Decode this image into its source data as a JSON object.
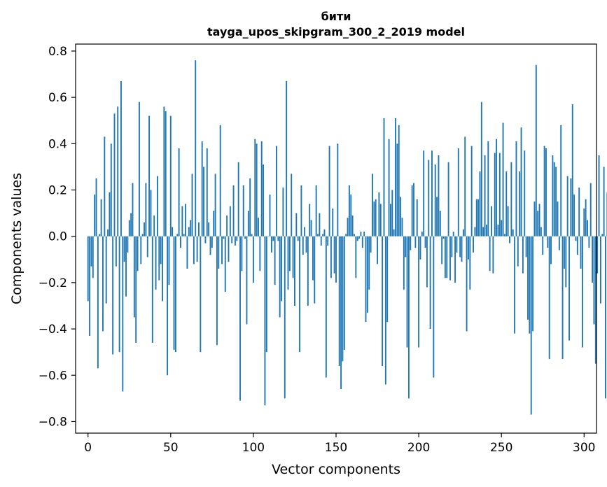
{
  "chart_data": {
    "type": "bar",
    "title": "бити",
    "subtitle": "tayga_upos_skipgram_300_2_2019 model",
    "xlabel": "Vector components",
    "ylabel": "Components values",
    "xlim": [
      -7.5,
      307.5
    ],
    "ylim": [
      -0.85,
      0.83
    ],
    "xticks": [
      0,
      50,
      100,
      150,
      200,
      250,
      300
    ],
    "yticks": [
      -0.8,
      -0.6,
      -0.4,
      -0.2,
      0.0,
      0.2,
      0.4,
      0.6,
      0.8
    ],
    "ytick_labels": [
      "−0.8",
      "−0.6",
      "−0.4",
      "−0.2",
      "0.0",
      "0.2",
      "0.4",
      "0.6",
      "0.8"
    ],
    "grid": false,
    "bar_color": "#1f77b4",
    "values": [
      -0.28,
      -0.43,
      -0.13,
      -0.18,
      0.18,
      0.25,
      -0.57,
      0.01,
      0.16,
      -0.41,
      0.43,
      -0.29,
      0.03,
      0.19,
      0.4,
      -0.51,
      0.53,
      -0.13,
      0.56,
      -0.5,
      0.67,
      -0.67,
      -0.11,
      -0.26,
      -0.07,
      0.07,
      0.1,
      0.23,
      -0.35,
      -0.46,
      -0.15,
      0.58,
      -0.12,
      0.01,
      0.06,
      0.23,
      -0.09,
      0.52,
      0.2,
      -0.46,
      0.09,
      -0.23,
      0.26,
      -0.19,
      -0.12,
      -0.28,
      0.56,
      0.54,
      -0.6,
      -0.21,
      0.52,
      0.04,
      -0.49,
      -0.5,
      0.01,
      0.38,
      -0.05,
      0.13,
      0.01,
      0.14,
      -0.14,
      0.04,
      0.07,
      0.27,
      -0.12,
      0.76,
      -0.11,
      0.06,
      -0.5,
      0.41,
      0.3,
      -0.03,
      0.38,
      0.06,
      -0.08,
      -0.05,
      0.11,
      0.27,
      -0.47,
      -0.14,
      0.48,
      -0.12,
      -0.01,
      -0.24,
      0.09,
      -0.11,
      0.13,
      -0.03,
      0.22,
      -0.04,
      -0.02,
      0.32,
      -0.71,
      -0.15,
      0.22,
      -0.01,
      -0.38,
      0.11,
      0.25,
      0.01,
      -0.2,
      0.42,
      0.4,
      0.08,
      -0.15,
      0.41,
      0.31,
      -0.73,
      -0.5,
      0.0,
      0.18,
      -0.07,
      -0.02,
      -0.21,
      0.39,
      -0.02,
      -0.35,
      -0.28,
      0.21,
      -0.7,
      0.67,
      -0.23,
      -0.15,
      0.27,
      -0.18,
      -0.3,
      0.1,
      -0.02,
      -0.5,
      0.22,
      -0.08,
      0.04,
      -0.07,
      -0.3,
      0.14,
      0.07,
      -0.19,
      -0.29,
      0.22,
      0.01,
      0.1,
      -0.04,
      0.01,
      0.03,
      -0.61,
      -0.04,
      0.39,
      -0.18,
      0.12,
      -0.16,
      -0.2,
      0.4,
      -0.56,
      -0.66,
      -0.54,
      -0.49,
      0.01,
      0.08,
      0.22,
      0.18,
      0.09,
      0.01,
      -0.18,
      -0.02,
      -0.01,
      0.02,
      -0.05,
      0.02,
      -0.37,
      -0.33,
      -0.23,
      -0.07,
      0.27,
      0.15,
      0.16,
      -0.12,
      0.19,
      0.14,
      -0.56,
      0.51,
      -0.64,
      -0.37,
      0.42,
      0.14,
      0.2,
      0.03,
      0.51,
      0.4,
      0.48,
      0.17,
      0.08,
      -0.23,
      -0.09,
      -0.48,
      -0.7,
      -0.06,
      0.22,
      0.23,
      -0.05,
      0.16,
      -0.48,
      -0.1,
      0.02,
      0.37,
      -0.05,
      -0.22,
      0.33,
      -0.4,
      0.37,
      -0.61,
      0.31,
      0.17,
      0.35,
      0.11,
      -0.12,
      -0.01,
      -0.18,
      -0.18,
      0.32,
      -0.19,
      -0.09,
      0.02,
      -0.2,
      -0.07,
      0.38,
      -0.09,
      -0.11,
      0.03,
      0.43,
      -0.41,
      -0.1,
      -0.23,
      0.39,
      -0.07,
      0.04,
      0.16,
      0.16,
      0.28,
      0.58,
      0.04,
      0.35,
      0.05,
      0.41,
      -0.15,
      0.13,
      -0.16,
      0.36,
      0.42,
      0.05,
      0.36,
      0.07,
      0.49,
      0.01,
      0.28,
      0.13,
      -0.03,
      0.32,
      0.03,
      -0.42,
      0.41,
      -0.13,
      0.28,
      0.47,
      -0.16,
      0.37,
      -0.09,
      -0.36,
      -0.42,
      -0.77,
      -0.41,
      0.15,
      0.74,
      0.11,
      0.14,
      0.04,
      -0.08,
      0.39,
      0.38,
      -0.05,
      -0.53,
      -0.12,
      0.35,
      0.32,
      0.3,
      0.15,
      -0.06,
      0.48,
      -0.53,
      -0.14,
      -0.22,
      0.26,
      -0.45,
      0.25,
      0.57,
      0.18,
      -0.02,
      -0.08,
      0.21,
      -0.14,
      -0.48,
      0.12,
      0.16,
      0.07,
      -0.05,
      0.23,
      -0.2,
      -0.38,
      -0.55,
      -0.16,
      0.35,
      -0.29,
      0.01,
      0.3,
      -0.7,
      0.19
    ]
  }
}
